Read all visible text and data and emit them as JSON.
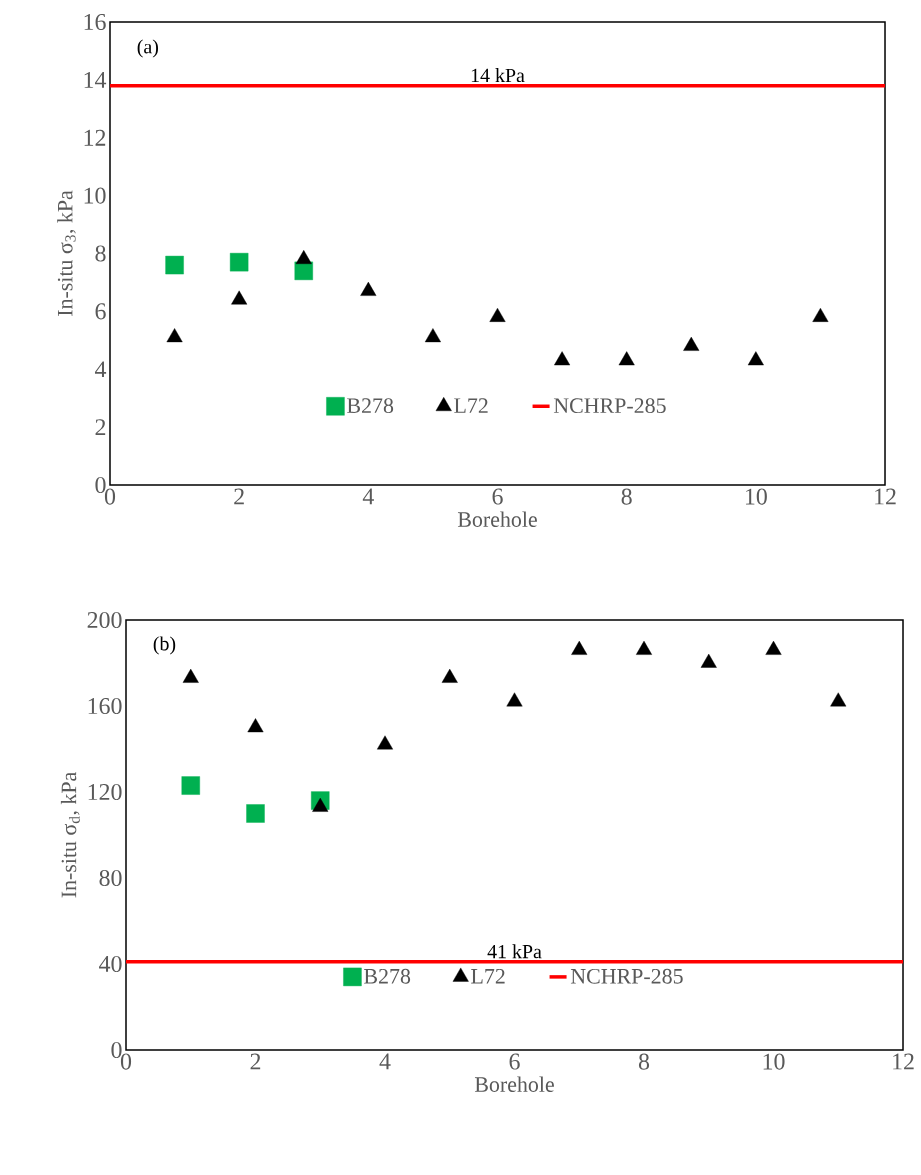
{
  "chart_data": [
    {
      "type": "scatter",
      "xlabel": "Borehole",
      "ylabel": "In-situ σ$_{3}$, kPa",
      "xlim": [
        0,
        12
      ],
      "xticks": [
        0,
        2,
        4,
        6,
        8,
        10,
        12
      ],
      "ylim": [
        0,
        16
      ],
      "yticks": [
        0,
        2,
        4,
        6,
        8,
        10,
        12,
        14,
        16
      ],
      "legend": "bottom",
      "annotations": [
        "(a)",
        {
          "text": "14 kPa",
          "x": 6,
          "y": 13.8
        }
      ],
      "series": [
        {
          "name": "B278",
          "color": "#00b050",
          "marker": "square",
          "x": [
            1,
            2,
            3
          ],
          "values": [
            7.6,
            7.7,
            7.4
          ]
        },
        {
          "name": "L72",
          "color": "#000000",
          "marker": "triangle",
          "x": [
            1,
            2,
            3,
            4,
            5,
            6,
            7,
            8,
            9,
            10,
            11
          ],
          "values": [
            5.1,
            6.4,
            7.8,
            6.7,
            5.1,
            5.8,
            4.3,
            4.3,
            4.8,
            4.3,
            5.8
          ]
        },
        {
          "name": "NCHRP-285",
          "type": "line",
          "color": "#ff0000",
          "marker": "none",
          "x": [
            0,
            12
          ],
          "values": [
            13.8,
            13.8
          ]
        }
      ]
    },
    {
      "type": "scatter",
      "xlabel": "Borehole",
      "ylabel": "In-situ σ$_{d}$, kPa",
      "xlim": [
        0,
        12
      ],
      "xticks": [
        0,
        2,
        4,
        6,
        8,
        10,
        12
      ],
      "ylim": [
        0,
        200
      ],
      "yticks": [
        0,
        40,
        80,
        120,
        160,
        200
      ],
      "legend": "bottom",
      "annotations": [
        "(b)",
        {
          "text": "41 kPa",
          "x": 6,
          "y": 41
        }
      ],
      "series": [
        {
          "name": "B278",
          "color": "#00b050",
          "marker": "square",
          "x": [
            1,
            2,
            3
          ],
          "values": [
            123,
            110,
            116
          ]
        },
        {
          "name": "L72",
          "color": "#000000",
          "marker": "triangle",
          "x": [
            1,
            2,
            3,
            4,
            5,
            6,
            7,
            8,
            9,
            10,
            11
          ],
          "values": [
            173,
            150,
            113,
            142,
            173,
            162,
            186,
            186,
            180,
            186,
            162
          ]
        },
        {
          "name": "NCHRP-285",
          "type": "line",
          "color": "#ff0000",
          "marker": "none",
          "x": [
            0,
            12
          ],
          "values": [
            41,
            41
          ]
        }
      ]
    }
  ]
}
